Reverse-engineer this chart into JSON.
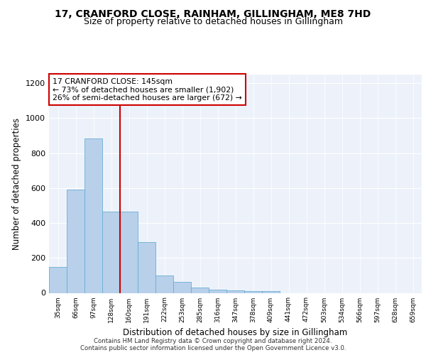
{
  "title1": "17, CRANFORD CLOSE, RAINHAM, GILLINGHAM, ME8 7HD",
  "title2": "Size of property relative to detached houses in Gillingham",
  "xlabel": "Distribution of detached houses by size in Gillingham",
  "ylabel": "Number of detached properties",
  "categories": [
    "35sqm",
    "66sqm",
    "97sqm",
    "128sqm",
    "160sqm",
    "191sqm",
    "222sqm",
    "253sqm",
    "285sqm",
    "316sqm",
    "347sqm",
    "378sqm",
    "409sqm",
    "441sqm",
    "472sqm",
    "503sqm",
    "534sqm",
    "566sqm",
    "597sqm",
    "628sqm",
    "659sqm"
  ],
  "values": [
    150,
    590,
    885,
    465,
    465,
    290,
    100,
    63,
    30,
    20,
    13,
    10,
    10,
    0,
    0,
    0,
    0,
    0,
    0,
    0,
    0
  ],
  "bar_color": "#b8d0ea",
  "bar_edge_color": "#6aaed6",
  "vline_x": 3.5,
  "vline_color": "#cc0000",
  "annotation_text": "17 CRANFORD CLOSE: 145sqm\n← 73% of detached houses are smaller (1,902)\n26% of semi-detached houses are larger (672) →",
  "annotation_box_color": "#ffffff",
  "annotation_box_edge": "#cc0000",
  "ylim": [
    0,
    1250
  ],
  "yticks": [
    0,
    200,
    400,
    600,
    800,
    1000,
    1200
  ],
  "background_color": "#edf2fa",
  "footer1": "Contains HM Land Registry data © Crown copyright and database right 2024.",
  "footer2": "Contains public sector information licensed under the Open Government Licence v3.0.",
  "title1_fontsize": 10,
  "title2_fontsize": 9,
  "xlabel_fontsize": 8.5,
  "ylabel_fontsize": 8.5
}
